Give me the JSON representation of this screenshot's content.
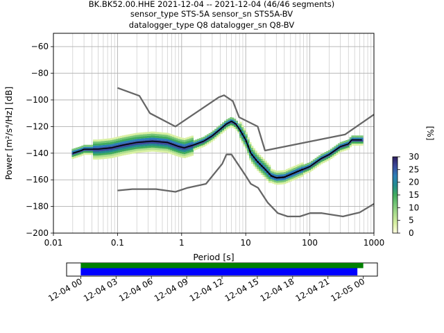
{
  "chart_data": [
    {
      "type": "line",
      "title_lines": [
        "BK.BK52.00.HHE   2021-12-04 -- 2021-12-04  (46/46 segments)",
        "sensor_type STS-5A sensor_sn STS5A-BV",
        "datalogger_type Q8 datalogger_sn Q8-BV"
      ],
      "xlabel": "Period [s]",
      "ylabel": "Power [m²/s⁴/Hz] [dB]",
      "xscale": "log",
      "xlim": [
        0.01,
        1000
      ],
      "ylim": [
        -200,
        -50
      ],
      "grid": true,
      "x_ticks": [
        {
          "v": 0.01,
          "label": "0.01"
        },
        {
          "v": 0.1,
          "label": "0.1"
        },
        {
          "v": 1,
          "label": "1"
        },
        {
          "v": 10,
          "label": "10"
        },
        {
          "v": 100,
          "label": "100"
        },
        {
          "v": 1000,
          "label": "1000"
        }
      ],
      "y_ticks": [
        {
          "v": -60,
          "label": "−60"
        },
        {
          "v": -80,
          "label": "−80"
        },
        {
          "v": -100,
          "label": "−100"
        },
        {
          "v": -120,
          "label": "−120"
        },
        {
          "v": -140,
          "label": "−140"
        },
        {
          "v": -160,
          "label": "−160"
        },
        {
          "v": -180,
          "label": "−180"
        },
        {
          "v": -200,
          "label": "−200"
        }
      ],
      "series": [
        {
          "role": "new-high-noise-model",
          "color": "#666666",
          "points": [
            [
              0.1,
              -91
            ],
            [
              0.22,
              -97
            ],
            [
              0.32,
              -110
            ],
            [
              0.8,
              -120
            ],
            [
              3.8,
              -98
            ],
            [
              4.6,
              -96.5
            ],
            [
              6.3,
              -101
            ],
            [
              7.9,
              -113
            ],
            [
              15.4,
              -120
            ],
            [
              20,
              -138
            ],
            [
              354,
              -126
            ],
            [
              1000,
              -111
            ]
          ]
        },
        {
          "role": "new-low-noise-model",
          "color": "#666666",
          "points": [
            [
              0.1,
              -168
            ],
            [
              0.17,
              -167
            ],
            [
              0.4,
              -167
            ],
            [
              0.8,
              -169
            ],
            [
              1.24,
              -166
            ],
            [
              2.4,
              -163
            ],
            [
              4.3,
              -148
            ],
            [
              5,
              -141
            ],
            [
              6,
              -141
            ],
            [
              10,
              -157
            ],
            [
              12,
              -163
            ],
            [
              15.6,
              -166
            ],
            [
              21.9,
              -177
            ],
            [
              31.6,
              -185
            ],
            [
              45,
              -187.5
            ],
            [
              70,
              -187.5
            ],
            [
              101,
              -185
            ],
            [
              154,
              -185
            ],
            [
              328,
              -187.5
            ],
            [
              600,
              -184.5
            ],
            [
              1000,
              -178
            ]
          ]
        },
        {
          "role": "mode",
          "color": "#000000",
          "points": [
            [
              0.02,
              -140
            ],
            [
              0.027,
              -138
            ],
            [
              0.03,
              -137
            ],
            [
              0.035,
              -137
            ],
            [
              0.05,
              -137
            ],
            [
              0.08,
              -136
            ],
            [
              0.12,
              -134
            ],
            [
              0.2,
              -132
            ],
            [
              0.35,
              -131
            ],
            [
              0.6,
              -132
            ],
            [
              0.9,
              -135
            ],
            [
              1.1,
              -136
            ],
            [
              1.5,
              -134
            ],
            [
              2.2,
              -131
            ],
            [
              3,
              -127
            ],
            [
              4,
              -122
            ],
            [
              5,
              -118
            ],
            [
              6,
              -116
            ],
            [
              7,
              -118
            ],
            [
              8,
              -122
            ],
            [
              10,
              -130
            ],
            [
              12,
              -140
            ],
            [
              15,
              -146
            ],
            [
              20,
              -152
            ],
            [
              25,
              -157
            ],
            [
              30,
              -158.5
            ],
            [
              40,
              -158
            ],
            [
              50,
              -156
            ],
            [
              70,
              -153
            ],
            [
              100,
              -150
            ],
            [
              150,
              -144
            ],
            [
              200,
              -141
            ],
            [
              300,
              -135
            ],
            [
              400,
              -133
            ],
            [
              450,
              -130
            ],
            [
              650,
              -130
            ]
          ]
        }
      ],
      "density_colorbar": {
        "label": "[%]",
        "min": 0,
        "max": 30,
        "ticks": [
          {
            "v": 0,
            "label": "0"
          },
          {
            "v": 5,
            "label": "5"
          },
          {
            "v": 10,
            "label": "10"
          },
          {
            "v": 15,
            "label": "15"
          },
          {
            "v": 20,
            "label": "20"
          },
          {
            "v": 25,
            "label": "25"
          },
          {
            "v": 30,
            "label": "30"
          }
        ],
        "colors": [
          "#ffffe0",
          "#d9f0a3",
          "#addd8e",
          "#78c679",
          "#41ab5d",
          "#238b8e",
          "#2c7fb8",
          "#3b4a9c",
          "#2d1e5e"
        ]
      }
    },
    {
      "type": "timeline",
      "x_ticks": [
        "12-04 00",
        "12-04 03",
        "12-04 06",
        "12-04 09",
        "12-04 12",
        "12-04 15",
        "12-04 18",
        "12-04 21",
        "12-05 00"
      ],
      "xlim_hours": [
        -1.2,
        25.2
      ],
      "bars": [
        {
          "role": "data-coverage",
          "start_hour": 0.0,
          "end_hour": 24.0,
          "color": "#008000"
        },
        {
          "role": "psd-segments",
          "start_hour": 0.0,
          "end_hour": 23.5,
          "color": "#0000ff"
        }
      ]
    }
  ]
}
